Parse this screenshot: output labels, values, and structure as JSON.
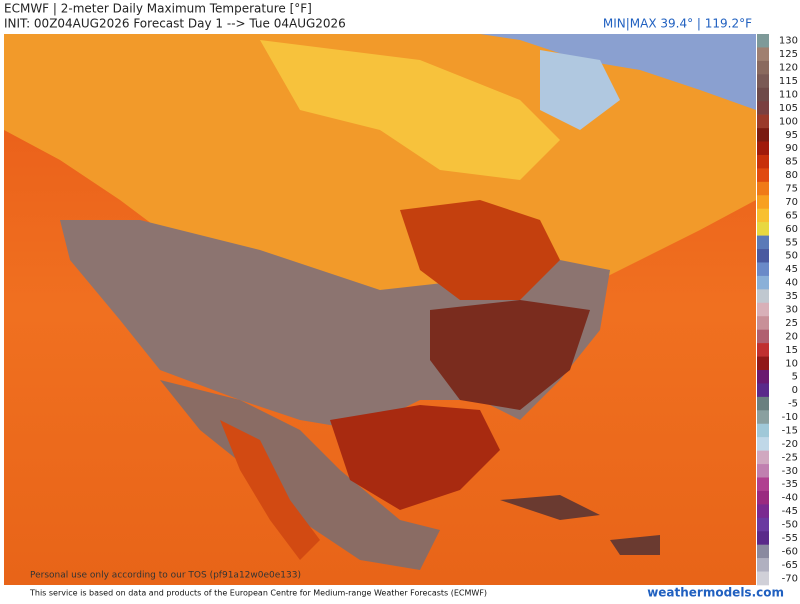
{
  "header": {
    "title": "ECMWF | 2-meter Daily Maximum Temperature [°F]",
    "subtitle": "INIT: 00Z04AUG2026 Forecast Day 1 --> Tue 04AUG2026",
    "minmax": "MIN|MAX 39.4° | 119.2°F"
  },
  "colorbar": {
    "labels": [
      130,
      125,
      120,
      115,
      110,
      105,
      100,
      95,
      90,
      85,
      80,
      75,
      70,
      65,
      60,
      55,
      50,
      45,
      40,
      35,
      30,
      25,
      20,
      15,
      10,
      5,
      0,
      -5,
      -10,
      -15,
      -20,
      -25,
      -30,
      -35,
      -40,
      -45,
      -50,
      -55,
      -60,
      -65,
      -70
    ],
    "colors": [
      "#7e9a99",
      "#a08070",
      "#8a6a5e",
      "#7a5a55",
      "#6e4a48",
      "#7a4040",
      "#9a3a2a",
      "#7a1a10",
      "#a01a0a",
      "#c8300a",
      "#e04a10",
      "#f07a18",
      "#f8a020",
      "#f8c030",
      "#e8d840",
      "#5a7ab8",
      "#4a5aa0",
      "#6a8ac8",
      "#8ab0d8",
      "#c0c8d0",
      "#d8b0b8",
      "#c89098",
      "#b06070",
      "#c03030",
      "#901818",
      "#6a1a70",
      "#5a2a8a",
      "#6a8080",
      "#8aa0a0",
      "#a0c8d8",
      "#c0d8e8",
      "#d0a8c0",
      "#c080b0",
      "#b04090",
      "#9a2a80",
      "#7a2a90",
      "#6a3aa0",
      "#5a2a8a",
      "#8a8aa0",
      "#b0b0c0",
      "#d0d0d8"
    ]
  },
  "watermark": "Personal use only according to our TOS (pf91a12w0e0e133)",
  "footer": {
    "credit": "This service is based on data and products of the European Centre for Medium-range Weather Forecasts (ECMWF)",
    "site": "weathermodels.com"
  }
}
